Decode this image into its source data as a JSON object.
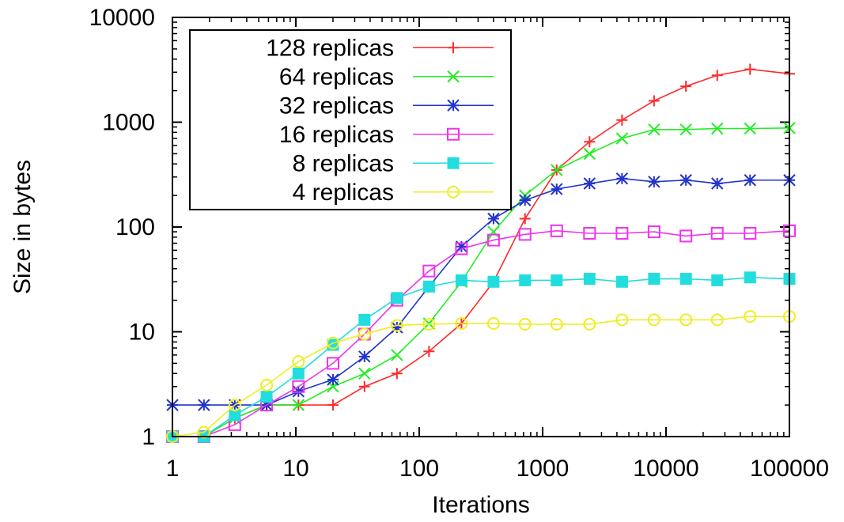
{
  "chart_data": {
    "type": "line",
    "xlabel": "Iterations",
    "ylabel": "Size in bytes",
    "xscale": "log",
    "yscale": "log",
    "xlim": [
      1,
      100000
    ],
    "ylim": [
      1,
      10000
    ],
    "xticks": [
      "1",
      "10",
      "100",
      "1000",
      "10000",
      "100000"
    ],
    "yticks": [
      "1",
      "10",
      "100",
      "1000",
      "10000"
    ],
    "legend_position": "top-left",
    "grid": false,
    "series": [
      {
        "name": "128 replicas",
        "color": "#ff2a2a",
        "marker": "plus",
        "x": [
          1,
          1.8,
          3.2,
          5.8,
          10.5,
          20,
          36,
          66,
          120,
          220,
          400,
          720,
          1300,
          2400,
          4400,
          8000,
          14500,
          26000,
          48000,
          100000
        ],
        "y": [
          1,
          1,
          1.5,
          2,
          2,
          2,
          3,
          4,
          6.5,
          12,
          30,
          120,
          350,
          650,
          1050,
          1600,
          2200,
          2800,
          3200,
          2900
        ]
      },
      {
        "name": "64 replicas",
        "color": "#22ee22",
        "marker": "cross",
        "x": [
          1,
          1.8,
          3.2,
          5.8,
          10.5,
          20,
          36,
          66,
          120,
          220,
          400,
          720,
          1300,
          2400,
          4400,
          8000,
          14500,
          26000,
          48000,
          100000
        ],
        "y": [
          1,
          1,
          1.5,
          2,
          2,
          3,
          4,
          6,
          12,
          30,
          90,
          200,
          350,
          500,
          700,
          850,
          850,
          870,
          870,
          880
        ]
      },
      {
        "name": "32 replicas",
        "color": "#2233cc",
        "marker": "star",
        "x": [
          1,
          1.8,
          3.2,
          5.8,
          10.5,
          20,
          36,
          66,
          120,
          220,
          400,
          720,
          1300,
          2400,
          4400,
          8000,
          14500,
          26000,
          48000,
          100000
        ],
        "y": [
          2,
          2,
          2,
          2,
          2.7,
          3.5,
          5.8,
          11,
          27,
          65,
          120,
          180,
          230,
          260,
          290,
          270,
          280,
          260,
          280,
          280
        ]
      },
      {
        "name": "16 replicas",
        "color": "#ee33ee",
        "marker": "square-open",
        "x": [
          1,
          1.8,
          3.2,
          5.8,
          10.5,
          20,
          36,
          66,
          120,
          220,
          400,
          720,
          1300,
          2400,
          4400,
          8000,
          14500,
          26000,
          48000,
          100000
        ],
        "y": [
          1,
          1,
          1.3,
          2,
          3,
          5,
          9.5,
          20,
          38,
          62,
          75,
          85,
          92,
          87,
          87,
          90,
          82,
          87,
          87,
          92
        ]
      },
      {
        "name": "8 replicas",
        "color": "#22dddd",
        "marker": "square-filled",
        "x": [
          1,
          1.8,
          3.2,
          5.8,
          10.5,
          20,
          36,
          66,
          120,
          220,
          400,
          720,
          1300,
          2400,
          4400,
          8000,
          14500,
          26000,
          48000,
          100000
        ],
        "y": [
          1,
          1,
          1.6,
          2.4,
          4,
          7.5,
          13,
          21,
          27,
          31,
          30,
          31,
          31,
          32,
          30,
          32,
          32,
          31,
          33,
          32
        ]
      },
      {
        "name": "4 replicas",
        "color": "#eeee22",
        "marker": "circle-open",
        "x": [
          1,
          1.8,
          3.2,
          5.8,
          10.5,
          20,
          36,
          66,
          120,
          220,
          400,
          720,
          1300,
          2400,
          4400,
          8000,
          14500,
          26000,
          48000,
          100000
        ],
        "y": [
          1,
          1.1,
          2,
          3.1,
          5.2,
          7.8,
          9.5,
          11.5,
          11.8,
          12,
          12,
          11.8,
          11.8,
          11.8,
          13,
          13,
          13,
          13,
          14,
          14
        ]
      }
    ]
  }
}
